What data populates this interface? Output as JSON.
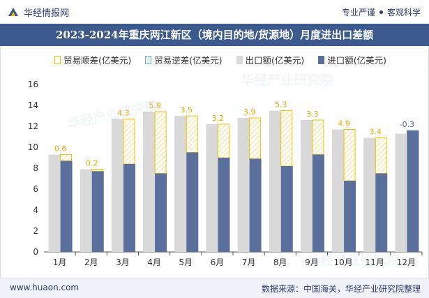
{
  "header": {
    "brand": "华经情报网",
    "tagline_left": "专业严谨",
    "tagline_right": "客观科学"
  },
  "watermark": "华经产业研究院",
  "footer": {
    "website": "www.huaon.com",
    "source": "数据来源：中国海关，华经产业研究院整理"
  },
  "colors": {
    "export": "#d9d9d9",
    "import": "#5b6f9c",
    "surplus": "#f2c200",
    "deficit": "#6fb3c8",
    "title_bg": "#3d5a8f"
  },
  "chart_data": {
    "type": "bar",
    "title": "2023-2024年重庆两江新区（境内目的地/货源地）月度进出口差额",
    "legend": [
      "贸易顺差(亿美元)",
      "贸易逆差(亿美元)",
      "出口额(亿美元)",
      "进口额(亿美元)"
    ],
    "categories": [
      "1月",
      "2月",
      "3月",
      "4月",
      "5月",
      "6月",
      "7月",
      "8月",
      "9月",
      "10月",
      "11月",
      "12月"
    ],
    "series": [
      {
        "name": "出口额(亿美元)",
        "values": [
          9.3,
          7.9,
          12.7,
          13.4,
          13.0,
          12.2,
          12.8,
          13.5,
          12.6,
          11.7,
          10.9,
          11.3
        ]
      },
      {
        "name": "进口额(亿美元)",
        "values": [
          8.7,
          7.7,
          8.4,
          7.5,
          9.5,
          9.0,
          8.9,
          8.2,
          9.3,
          6.8,
          7.5,
          11.6
        ]
      },
      {
        "name": "贸易差额(亿美元)",
        "values": [
          0.6,
          0.2,
          4.3,
          5.9,
          3.5,
          3.2,
          3.9,
          5.3,
          3.3,
          4.9,
          3.4,
          -0.3
        ]
      }
    ],
    "balance_labels": [
      "0.6",
      "0.2",
      "4.3",
      "5.9",
      "3.5",
      "3.2",
      "3.9",
      "5.3",
      "3.3",
      "4.9",
      "3.4",
      "-0.3"
    ],
    "yticks": [
      "0",
      "2",
      "4",
      "6",
      "8",
      "10",
      "12",
      "14",
      "16"
    ],
    "ylim": [
      0,
      16
    ],
    "xlabel": "",
    "ylabel": ""
  }
}
